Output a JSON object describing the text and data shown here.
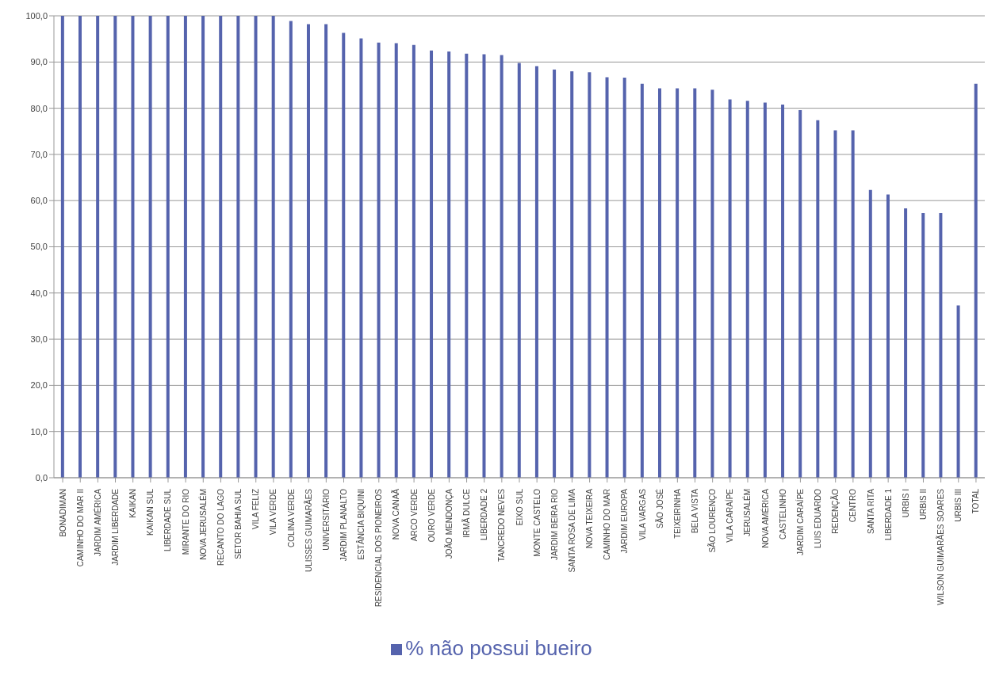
{
  "chart_data": {
    "type": "bar",
    "categories": [
      "BONADIMAN",
      "CAMINHO DO MAR II",
      "JARDIM AMÉRICA",
      "JARDIM LIBERDADE",
      "KAIKAN",
      "KAIKAN SUL",
      "LIBERDADE SUL",
      "MIRANTE DO RIO",
      "NOVA JERUSALÉM",
      "RECANTO DO LAGO",
      "SETOR BAHIA SUL",
      "VILA FELIZ",
      "VILA VERDE",
      "COLINA VERDE",
      "ULISSES GUIMARÃES",
      "UNIVERSITÁRIO",
      "JARDIM PLANALTO",
      "ESTÂNCIA BIQUINI",
      "RESIDENCIAL DOS PIONEIROS",
      "NOVA CANAÃ",
      "ARCO VERDE",
      "OURO VERDE",
      "JOÃO MENDONÇA",
      "IRMÃ DULCE",
      "LIBERDADE 2",
      "TANCREDO NEVES",
      "EIXO SUL",
      "MONTE CASTELO",
      "JARDIM BEIRA RIO",
      "SANTA ROSA DE LIMA",
      "NOVA TEIXEIRA",
      "CAMINHO DO MAR",
      "JARDIM EUROPA",
      "VILA VARGAS",
      "SÃO JOSÉ",
      "TEIXEIRINHA",
      "BELA VISTA",
      "SÃO LOURENÇO",
      "VILA CARAÍPE",
      "JERUSALÉM",
      "NOVA AMÉRICA",
      "CASTELINHO",
      "JARDIM CARAÍPE",
      "LUIS EDUARDO",
      "REDENÇÃO",
      "CENTRO",
      "SANTA RITA",
      "LIBERDADE 1",
      "URBIS I",
      "URBIS II",
      "WILSON GUIMARÃES SOARES",
      "URBIS III",
      "TOTAL"
    ],
    "series": [
      {
        "name": "% não possui bueiro",
        "color": "#5563ad",
        "values": [
          100,
          100,
          100,
          100,
          100,
          100,
          100,
          100,
          100,
          100,
          100,
          100,
          100,
          98.9,
          98.2,
          98.2,
          96.3,
          95.1,
          94.2,
          94.1,
          93.7,
          92.5,
          92.3,
          91.8,
          91.7,
          91.5,
          89.8,
          89.1,
          88.4,
          88.0,
          87.8,
          86.7,
          86.6,
          85.3,
          84.3,
          84.3,
          84.3,
          84.0,
          81.9,
          81.6,
          81.2,
          80.8,
          79.6,
          77.4,
          75.2,
          75.2,
          62.3,
          61.3,
          58.3,
          57.3,
          57.3,
          37.3,
          85.3
        ]
      }
    ],
    "ylim": [
      0,
      100
    ],
    "yticks": [
      {
        "value": 0,
        "label": "0,0"
      },
      {
        "value": 10,
        "label": "10,0"
      },
      {
        "value": 20,
        "label": "20,0"
      },
      {
        "value": 30,
        "label": "30,0"
      },
      {
        "value": 40,
        "label": "40,0"
      },
      {
        "value": 50,
        "label": "50,0"
      },
      {
        "value": 60,
        "label": "60,0"
      },
      {
        "value": 70,
        "label": "70,0"
      },
      {
        "value": 80,
        "label": "80,0"
      },
      {
        "value": 90,
        "label": "90,0"
      },
      {
        "value": 100,
        "label": "100,0"
      }
    ],
    "grid": "y",
    "legend": "bottom"
  }
}
